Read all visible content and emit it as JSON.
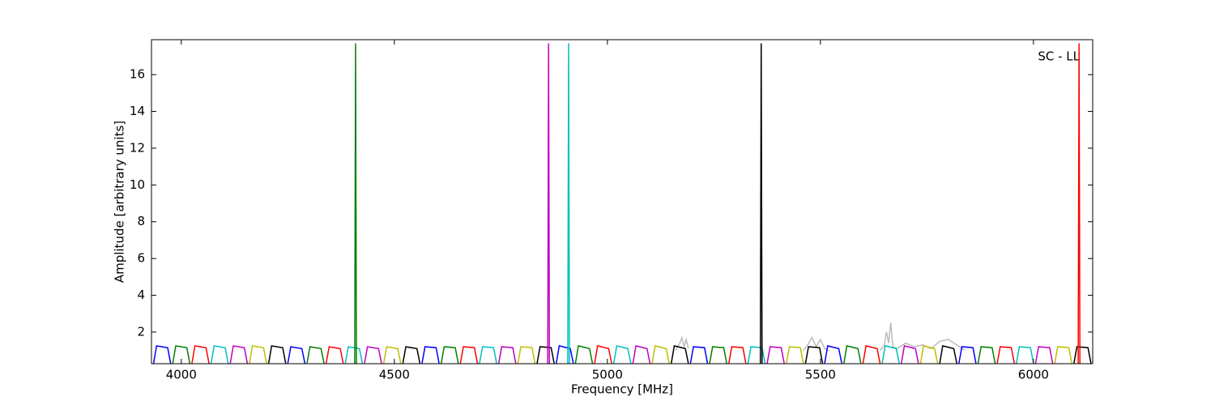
{
  "chart_data": {
    "type": "line",
    "annotation": "SC - LL",
    "x_label": "Frequency [MHz]",
    "y_label": "Amplitude [arbitrary units]",
    "xlim": [
      3930,
      6139
    ],
    "ylim": [
      0.28,
      17.9
    ],
    "xticks": [
      4000,
      4500,
      5000,
      5500,
      6000
    ],
    "yticks": [
      2,
      4,
      6,
      8,
      10,
      12,
      14,
      16
    ],
    "series": [
      {
        "color": "#bbbbbb",
        "x": [
          5460,
          5470,
          5480,
          5490,
          5500,
          5510,
          5520
        ],
        "values": [
          1.0,
          1.3,
          1.7,
          1.2,
          1.6,
          1.1,
          1.0
        ]
      },
      {
        "color": "#bbbbbb",
        "x": [
          5640,
          5650,
          5655,
          5660,
          5665,
          5670,
          5680,
          5700,
          5720,
          5740,
          5760,
          5780,
          5800,
          5820,
          5840
        ],
        "values": [
          1.0,
          1.3,
          2.0,
          1.4,
          2.5,
          1.2,
          1.1,
          1.4,
          1.2,
          1.3,
          1.1,
          1.5,
          1.6,
          1.3,
          1.0
        ]
      },
      {
        "color": "#bbbbbb",
        "x": [
          5160,
          5170,
          5175,
          5180,
          5185,
          5190
        ],
        "values": [
          1.0,
          1.4,
          1.7,
          1.2,
          1.6,
          1.1
        ]
      },
      {
        "color": "#0000ff",
        "x": [
          3935,
          3942,
          3968,
          3975,
          null,
          4250,
          4257,
          4283,
          4290,
          null,
          4565,
          4572,
          4598,
          4605,
          null,
          4880,
          4887,
          4913,
          4920,
          null,
          5195,
          5202,
          5228,
          5235,
          null,
          5510,
          5517,
          5543,
          5550,
          null,
          5825,
          5832,
          5858,
          5865
        ],
        "values": [
          0.3,
          1.25,
          1.15,
          0.3,
          null,
          0.3,
          1.2,
          1.1,
          0.3,
          null,
          0.3,
          1.2,
          1.15,
          0.3,
          null,
          0.3,
          1.25,
          1.1,
          0.3,
          null,
          0.3,
          1.2,
          1.15,
          0.3,
          null,
          0.3,
          1.25,
          1.1,
          0.3,
          null,
          0.3,
          1.2,
          1.15,
          0.3
        ]
      },
      {
        "color": "#008000",
        "x": [
          3980,
          3987,
          4013,
          4020,
          null,
          4295,
          4302,
          4328,
          4335,
          null,
          4610,
          4617,
          4643,
          4650,
          null,
          4925,
          4932,
          4958,
          4965,
          null,
          5240,
          5247,
          5273,
          5280,
          null,
          5555,
          5562,
          5588,
          5595,
          null,
          5870,
          5877,
          5903,
          5910
        ],
        "values": [
          0.3,
          1.25,
          1.15,
          0.3,
          null,
          0.3,
          1.2,
          1.1,
          0.3,
          null,
          0.3,
          1.2,
          1.15,
          0.3,
          null,
          0.3,
          1.25,
          1.1,
          0.3,
          null,
          0.3,
          1.2,
          1.15,
          0.3,
          null,
          0.3,
          1.25,
          1.1,
          0.3,
          null,
          0.3,
          1.2,
          1.15,
          0.3
        ]
      },
      {
        "color": "#ff0000",
        "x": [
          4025,
          4032,
          4058,
          4065,
          null,
          4340,
          4347,
          4373,
          4380,
          null,
          4655,
          4662,
          4688,
          4695,
          null,
          4970,
          4977,
          5003,
          5010,
          null,
          5285,
          5292,
          5318,
          5325,
          null,
          5600,
          5607,
          5633,
          5640,
          null,
          5915,
          5922,
          5948,
          5955
        ],
        "values": [
          0.3,
          1.25,
          1.15,
          0.3,
          null,
          0.3,
          1.2,
          1.1,
          0.3,
          null,
          0.3,
          1.2,
          1.15,
          0.3,
          null,
          0.3,
          1.25,
          1.1,
          0.3,
          null,
          0.3,
          1.2,
          1.15,
          0.3,
          null,
          0.3,
          1.25,
          1.1,
          0.3,
          null,
          0.3,
          1.2,
          1.15,
          0.3
        ]
      },
      {
        "color": "#00bfbf",
        "x": [
          4070,
          4077,
          4103,
          4110,
          null,
          4385,
          4392,
          4418,
          4425,
          null,
          4700,
          4707,
          4733,
          4740,
          null,
          5015,
          5022,
          5048,
          5055,
          null,
          5330,
          5337,
          5363,
          5370,
          null,
          5645,
          5652,
          5678,
          5685,
          null,
          5960,
          5967,
          5993,
          6000
        ],
        "values": [
          0.3,
          1.25,
          1.15,
          0.3,
          null,
          0.3,
          1.2,
          1.1,
          0.3,
          null,
          0.3,
          1.2,
          1.15,
          0.3,
          null,
          0.3,
          1.25,
          1.1,
          0.3,
          null,
          0.3,
          1.2,
          1.15,
          0.3,
          null,
          0.3,
          1.25,
          1.1,
          0.3,
          null,
          0.3,
          1.2,
          1.15,
          0.3
        ]
      },
      {
        "color": "#bf00bf",
        "x": [
          4115,
          4122,
          4148,
          4155,
          null,
          4430,
          4437,
          4463,
          4470,
          null,
          4745,
          4752,
          4778,
          4785,
          null,
          5060,
          5067,
          5093,
          5100,
          null,
          5375,
          5382,
          5408,
          5415,
          null,
          5690,
          5697,
          5723,
          5730,
          null,
          6005,
          6012,
          6038,
          6045
        ],
        "values": [
          0.3,
          1.25,
          1.15,
          0.3,
          null,
          0.3,
          1.2,
          1.1,
          0.3,
          null,
          0.3,
          1.2,
          1.15,
          0.3,
          null,
          0.3,
          1.25,
          1.1,
          0.3,
          null,
          0.3,
          1.2,
          1.15,
          0.3,
          null,
          0.3,
          1.25,
          1.1,
          0.3,
          null,
          0.3,
          1.2,
          1.15,
          0.3
        ]
      },
      {
        "color": "#bfbf00",
        "x": [
          4160,
          4167,
          4193,
          4200,
          null,
          4475,
          4482,
          4508,
          4515,
          null,
          4790,
          4797,
          4823,
          4830,
          null,
          5105,
          5112,
          5138,
          5145,
          null,
          5420,
          5427,
          5453,
          5460,
          null,
          5735,
          5742,
          5768,
          5775,
          null,
          6050,
          6057,
          6083,
          6090
        ],
        "values": [
          0.3,
          1.25,
          1.15,
          0.3,
          null,
          0.3,
          1.2,
          1.1,
          0.3,
          null,
          0.3,
          1.2,
          1.15,
          0.3,
          null,
          0.3,
          1.25,
          1.1,
          0.3,
          null,
          0.3,
          1.2,
          1.15,
          0.3,
          null,
          0.3,
          1.25,
          1.1,
          0.3,
          null,
          0.3,
          1.2,
          1.15,
          0.3
        ]
      },
      {
        "color": "#000000",
        "x": [
          4205,
          4212,
          4238,
          4245,
          null,
          4520,
          4527,
          4553,
          4560,
          null,
          4835,
          4842,
          4868,
          4875,
          null,
          5150,
          5157,
          5183,
          5190,
          null,
          5465,
          5472,
          5498,
          5505,
          null,
          5780,
          5787,
          5813,
          5820,
          null,
          6095,
          6102,
          6128,
          6135
        ],
        "values": [
          0.3,
          1.25,
          1.15,
          0.3,
          null,
          0.3,
          1.2,
          1.1,
          0.3,
          null,
          0.3,
          1.2,
          1.15,
          0.3,
          null,
          0.3,
          1.25,
          1.1,
          0.3,
          null,
          0.3,
          1.2,
          1.15,
          0.3,
          null,
          0.3,
          1.25,
          1.1,
          0.3,
          null,
          0.3,
          1.2,
          1.15,
          0.3
        ]
      },
      {
        "color": "#008000",
        "x": [
          4407,
          4409,
          4411
        ],
        "values": [
          0.3,
          17.7,
          0.3
        ]
      },
      {
        "color": "#bf00bf",
        "x": [
          4860,
          4862,
          4864
        ],
        "values": [
          0.3,
          17.7,
          0.3
        ]
      },
      {
        "color": "#00bfbf",
        "x": [
          4907,
          4909,
          4911
        ],
        "values": [
          0.3,
          17.7,
          0.3
        ]
      },
      {
        "color": "#000000",
        "x": [
          5359,
          5361,
          5363
        ],
        "values": [
          0.3,
          17.7,
          0.3
        ]
      },
      {
        "color": "#ff0000",
        "x": [
          6105,
          6107,
          6109
        ],
        "values": [
          0.3,
          17.7,
          0.3
        ]
      }
    ]
  }
}
